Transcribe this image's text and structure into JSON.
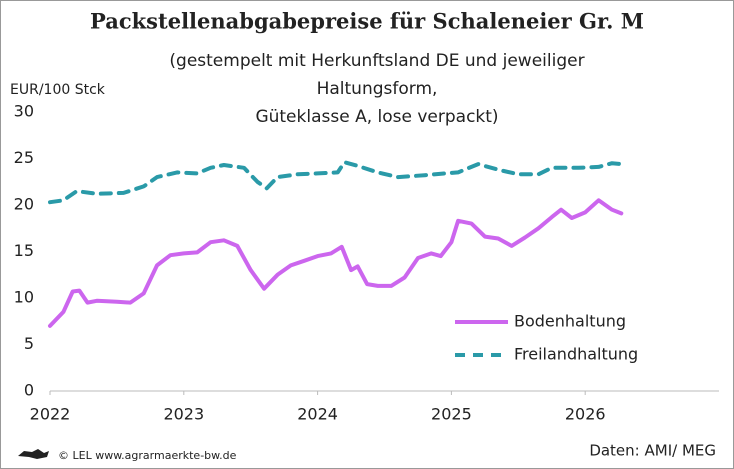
{
  "chart_data": {
    "type": "line",
    "title": "Packstellenabgabepreise für Schaleneier Gr. M",
    "subtitle": [
      "(gestempelt mit Herkunftsland DE und jeweiliger",
      "Haltungsform,",
      "Güteklasse A, lose verpackt)"
    ],
    "y_label": "EUR/100 Stck",
    "credit": "© LEL www.agrarmaerkte-bw.de",
    "source": "Daten: AMI/ MEG",
    "xlim": [
      2022,
      2027
    ],
    "xticks": [
      2022,
      2023,
      2024,
      2025,
      2026
    ],
    "ylim": [
      0,
      30
    ],
    "yticks": [
      0,
      5,
      10,
      15,
      20,
      25,
      30
    ],
    "grid": false,
    "legend": "lower right",
    "series": [
      {
        "name": "Bodenhaltung",
        "color": "#cc66ee",
        "dash": false,
        "x": [
          2022.0,
          2022.1,
          2022.17,
          2022.22,
          2022.28,
          2022.35,
          2022.5,
          2022.6,
          2022.7,
          2022.8,
          2022.9,
          2023.0,
          2023.1,
          2023.2,
          2023.3,
          2023.4,
          2023.5,
          2023.6,
          2023.7,
          2023.8,
          2023.9,
          2024.0,
          2024.1,
          2024.18,
          2024.25,
          2024.3,
          2024.37,
          2024.45,
          2024.55,
          2024.65,
          2024.75,
          2024.85,
          2024.92,
          2025.0,
          2025.05,
          2025.15,
          2025.25,
          2025.35,
          2025.45,
          2025.55,
          2025.65,
          2025.75,
          2025.82,
          2025.9,
          2026.0,
          2026.1,
          2026.2,
          2026.27
        ],
        "values": [
          7.0,
          8.5,
          10.7,
          10.8,
          9.5,
          9.7,
          9.6,
          9.5,
          10.5,
          13.5,
          14.6,
          14.8,
          14.9,
          16.0,
          16.2,
          15.6,
          13.0,
          11.0,
          12.5,
          13.5,
          14.0,
          14.5,
          14.8,
          15.5,
          13.0,
          13.4,
          11.5,
          11.3,
          11.3,
          12.2,
          14.3,
          14.8,
          14.5,
          16.0,
          18.3,
          18.0,
          16.6,
          16.4,
          15.6,
          16.5,
          17.5,
          18.7,
          19.5,
          18.6,
          19.2,
          20.5,
          19.5,
          19.1
        ]
      },
      {
        "name": "Freilandhaltung",
        "color": "#2a9aa8",
        "dash": true,
        "x": [
          2022.0,
          2022.1,
          2022.2,
          2022.35,
          2022.55,
          2022.7,
          2022.8,
          2022.95,
          2023.1,
          2023.2,
          2023.3,
          2023.45,
          2023.55,
          2023.62,
          2023.7,
          2023.85,
          2024.0,
          2024.15,
          2024.2,
          2024.3,
          2024.45,
          2024.6,
          2024.8,
          2024.95,
          2025.05,
          2025.2,
          2025.35,
          2025.5,
          2025.65,
          2025.75,
          2025.95,
          2026.1,
          2026.2,
          2026.27
        ],
        "values": [
          20.3,
          20.5,
          21.5,
          21.2,
          21.3,
          22.0,
          23.0,
          23.5,
          23.4,
          24.0,
          24.3,
          24.0,
          22.5,
          21.8,
          23.0,
          23.3,
          23.4,
          23.5,
          24.6,
          24.2,
          23.5,
          23.0,
          23.2,
          23.4,
          23.5,
          24.4,
          23.8,
          23.3,
          23.3,
          24.0,
          24.0,
          24.1,
          24.5,
          24.4
        ]
      }
    ]
  }
}
